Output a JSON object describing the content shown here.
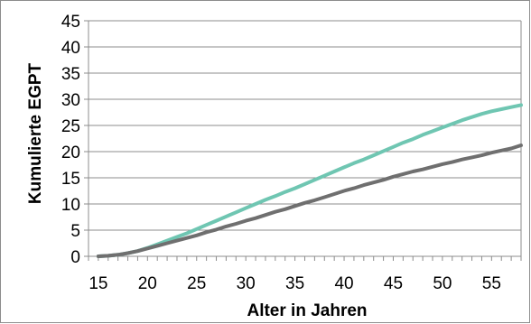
{
  "chart_data": {
    "type": "line",
    "title": "",
    "xlabel": "Alter in Jahren",
    "ylabel": "Kumulierte EGPT",
    "xlim": [
      14,
      58
    ],
    "ylim": [
      0,
      45
    ],
    "x_ticks": [
      "15",
      "20",
      "25",
      "30",
      "35",
      "40",
      "45",
      "50",
      "55"
    ],
    "y_ticks": [
      "0",
      "5",
      "10",
      "15",
      "20",
      "25",
      "30",
      "35",
      "40",
      "45"
    ],
    "grid": true,
    "legend": "none",
    "series": [
      {
        "color": "#6fc6b2",
        "x": [
          15,
          16,
          17,
          18,
          19,
          20,
          21,
          22,
          23,
          24,
          25,
          26,
          27,
          28,
          29,
          30,
          31,
          32,
          33,
          34,
          35,
          36,
          37,
          38,
          39,
          40,
          41,
          42,
          43,
          44,
          45,
          46,
          47,
          48,
          49,
          50,
          51,
          52,
          53,
          54,
          55,
          56,
          57,
          58
        ],
        "y": [
          0,
          0.1,
          0.3,
          0.6,
          1.0,
          1.6,
          2.3,
          3.0,
          3.7,
          4.4,
          5.2,
          6.0,
          6.8,
          7.6,
          8.4,
          9.2,
          10.0,
          10.8,
          11.5,
          12.3,
          13.0,
          13.8,
          14.6,
          15.4,
          16.2,
          17.0,
          17.8,
          18.5,
          19.3,
          20.1,
          20.9,
          21.7,
          22.4,
          23.2,
          23.9,
          24.6,
          25.3,
          26.0,
          26.6,
          27.2,
          27.7,
          28.1,
          28.5,
          28.9
        ]
      },
      {
        "color": "#6f6f6f",
        "x": [
          15,
          16,
          17,
          18,
          19,
          20,
          21,
          22,
          23,
          24,
          25,
          26,
          27,
          28,
          29,
          30,
          31,
          32,
          33,
          34,
          35,
          36,
          37,
          38,
          39,
          40,
          41,
          42,
          43,
          44,
          45,
          46,
          47,
          48,
          49,
          50,
          51,
          52,
          53,
          54,
          55,
          56,
          57,
          58
        ],
        "y": [
          0,
          0.1,
          0.3,
          0.6,
          1.0,
          1.5,
          2.0,
          2.5,
          3.0,
          3.5,
          4.0,
          4.6,
          5.1,
          5.7,
          6.2,
          6.8,
          7.3,
          7.9,
          8.5,
          9.0,
          9.6,
          10.2,
          10.7,
          11.3,
          11.9,
          12.5,
          13.0,
          13.6,
          14.1,
          14.6,
          15.2,
          15.7,
          16.2,
          16.6,
          17.1,
          17.6,
          18.0,
          18.5,
          18.9,
          19.3,
          19.8,
          20.2,
          20.6,
          21.2
        ]
      }
    ]
  }
}
